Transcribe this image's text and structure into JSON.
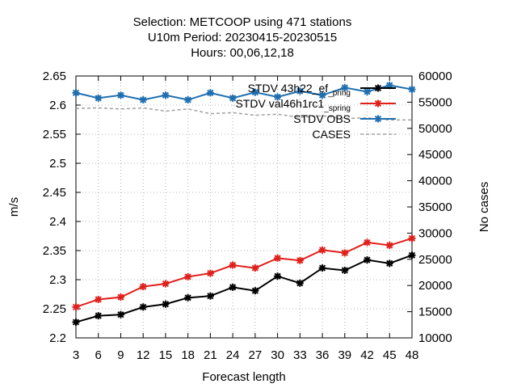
{
  "chart_data": {
    "type": "line",
    "title_lines": [
      "Selection: METCOOP using   471 stations",
      "U10m   Period: 20230415-20230515",
      "Hours:  00,06,12,18"
    ],
    "xlabel": "Forecast length",
    "ylabel": "m/s",
    "y2label": "No cases",
    "x": [
      3,
      6,
      9,
      12,
      15,
      18,
      21,
      24,
      27,
      30,
      33,
      36,
      39,
      42,
      45,
      48
    ],
    "xlim": [
      3,
      48
    ],
    "ylim": [
      2.2,
      2.65
    ],
    "y2lim": [
      10000,
      60000
    ],
    "yticks": [
      "2.2",
      "2.25",
      "2.3",
      "2.35",
      "2.4",
      "2.45",
      "2.5",
      "2.55",
      "2.6",
      "2.65"
    ],
    "y2ticks": [
      "10000",
      "15000",
      "20000",
      "25000",
      "30000",
      "35000",
      "40000",
      "45000",
      "50000",
      "55000",
      "60000"
    ],
    "grid": true,
    "legend_position": "top-right",
    "series": [
      {
        "name": "STDV 43h22_ef_pring",
        "name_main": "STDV 43h22_ef",
        "name_sub": "_pring",
        "axis": "y",
        "color": "#000000",
        "marker": "star",
        "values": [
          2.227,
          2.238,
          2.24,
          2.253,
          2.258,
          2.269,
          2.272,
          2.287,
          2.281,
          2.306,
          2.294,
          2.32,
          2.316,
          2.334,
          2.328,
          2.342
        ]
      },
      {
        "name": "STDV val46h1rc1_spring",
        "name_main": "STDV val46h1rc1",
        "name_sub": "_spring",
        "axis": "y",
        "color": "#e0201b",
        "marker": "star",
        "values": [
          2.253,
          2.266,
          2.27,
          2.288,
          2.293,
          2.305,
          2.311,
          2.325,
          2.32,
          2.337,
          2.333,
          2.351,
          2.346,
          2.364,
          2.359,
          2.371
        ]
      },
      {
        "name": "STDV OBS",
        "name_main": "STDV OBS",
        "name_sub": "",
        "axis": "y",
        "color": "#1f6fb0",
        "marker": "star",
        "values": [
          2.621,
          2.612,
          2.617,
          2.609,
          2.617,
          2.609,
          2.621,
          2.612,
          2.622,
          2.614,
          2.624,
          2.617,
          2.63,
          2.623,
          2.634,
          2.627
        ]
      },
      {
        "name": "CASES",
        "name_main": "CASES",
        "name_sub": "",
        "axis": "y2",
        "color": "#a0a0a0",
        "marker": "none",
        "dashed": true,
        "values": [
          53800,
          53900,
          53700,
          53900,
          53300,
          53700,
          52800,
          53000,
          52500,
          52700,
          52100,
          52400,
          51900,
          52000,
          51600,
          51600
        ]
      }
    ]
  }
}
